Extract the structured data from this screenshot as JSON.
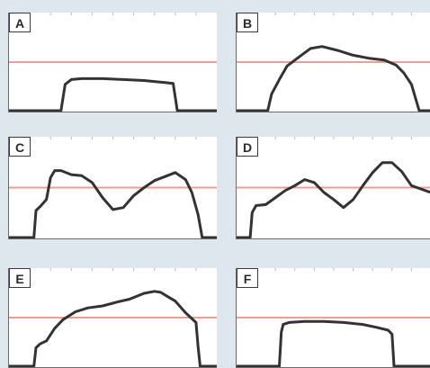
{
  "chart_data": [
    {
      "type": "line",
      "label": "A",
      "xlim": [
        0,
        100
      ],
      "ylim": [
        0,
        100
      ],
      "reference_line": 50,
      "x": [
        0,
        25,
        27,
        30,
        35,
        45,
        55,
        65,
        75,
        79,
        81,
        83,
        100
      ],
      "y": [
        0,
        0,
        27,
        32,
        33,
        33,
        32,
        31,
        29,
        28,
        0,
        0,
        0
      ]
    },
    {
      "type": "line",
      "label": "B",
      "xlim": [
        0,
        100
      ],
      "ylim": [
        0,
        100
      ],
      "reference_line": 50,
      "x": [
        0,
        16,
        18,
        22,
        26,
        32,
        38,
        44,
        52,
        60,
        68,
        76,
        82,
        86,
        90,
        94,
        100
      ],
      "y": [
        0,
        0,
        17,
        32,
        46,
        55,
        64,
        66,
        62,
        57,
        54,
        52,
        47,
        39,
        27,
        0,
        0
      ]
    },
    {
      "type": "line",
      "label": "C",
      "xlim": [
        0,
        100
      ],
      "ylim": [
        0,
        100
      ],
      "reference_line": 50,
      "x": [
        0,
        12,
        13,
        15,
        18,
        20,
        22,
        25,
        30,
        35,
        40,
        45,
        50,
        55,
        60,
        65,
        70,
        75,
        80,
        85,
        88,
        91,
        93,
        95,
        100
      ],
      "y": [
        0,
        0,
        27,
        31,
        38,
        60,
        67,
        67,
        63,
        62,
        55,
        40,
        28,
        30,
        42,
        50,
        57,
        61,
        65,
        58,
        45,
        23,
        0,
        0,
        0
      ]
    },
    {
      "type": "line",
      "label": "D",
      "xlim": [
        0,
        100
      ],
      "ylim": [
        0,
        100
      ],
      "reference_line": 50,
      "x": [
        0,
        7,
        8,
        10,
        15,
        20,
        25,
        30,
        35,
        40,
        45,
        50,
        55,
        60,
        65,
        70,
        75,
        80,
        85,
        90,
        100
      ],
      "y": [
        0,
        0,
        25,
        32,
        33,
        40,
        47,
        52,
        58,
        55,
        45,
        38,
        30,
        38,
        52,
        65,
        75,
        75,
        66,
        52,
        45
      ]
    },
    {
      "type": "line",
      "label": "E",
      "xlim": [
        0,
        100
      ],
      "ylim": [
        0,
        100
      ],
      "reference_line": 50,
      "x": [
        0,
        12,
        13,
        15,
        18,
        22,
        26,
        32,
        38,
        45,
        52,
        58,
        65,
        70,
        73,
        76,
        80,
        85,
        90,
        91,
        92,
        100
      ],
      "y": [
        0,
        0,
        19,
        23,
        26,
        39,
        48,
        56,
        60,
        62,
        66,
        69,
        75,
        77,
        76,
        72,
        67,
        55,
        45,
        20,
        0,
        0
      ]
    },
    {
      "type": "line",
      "label": "F",
      "xlim": [
        0,
        100
      ],
      "ylim": [
        0,
        100
      ],
      "reference_line": 50,
      "x": [
        0,
        22,
        23,
        24,
        27,
        35,
        45,
        55,
        65,
        72,
        78,
        80,
        81,
        100
      ],
      "y": [
        0,
        0,
        35,
        43,
        45,
        46,
        46,
        45,
        43,
        40,
        37,
        33,
        0,
        0
      ]
    }
  ]
}
